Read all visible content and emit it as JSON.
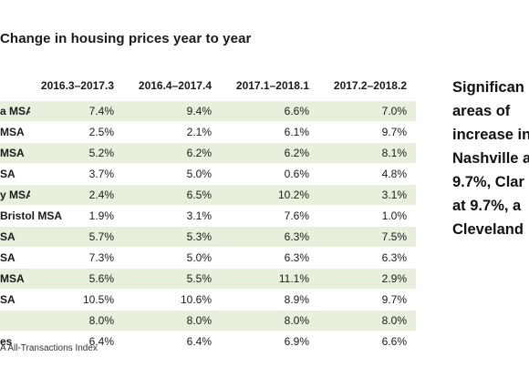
{
  "title": "Change in housing prices year to year",
  "table": {
    "columns": [
      "2016.3–2017.3",
      "2016.4–2017.4",
      "2017.1–2018.1",
      "2017.2–2018.2"
    ],
    "rows": [
      {
        "label": "a MSA",
        "values": [
          "7.4%",
          "9.4%",
          "6.6%",
          "7.0%"
        ]
      },
      {
        "label": "MSA",
        "values": [
          "2.5%",
          "2.1%",
          "6.1%",
          "9.7%"
        ]
      },
      {
        "label": "MSA",
        "values": [
          "5.2%",
          "6.2%",
          "6.2%",
          "8.1%"
        ]
      },
      {
        "label": "SA",
        "values": [
          "3.7%",
          "5.0%",
          "0.6%",
          "4.8%"
        ]
      },
      {
        "label": "y MSA",
        "values": [
          "2.4%",
          "6.5%",
          "10.2%",
          "3.1%"
        ]
      },
      {
        "label": "Bristol MSA",
        "values": [
          "1.9%",
          "3.1%",
          "7.6%",
          "1.0%"
        ]
      },
      {
        "label": "SA",
        "values": [
          "5.7%",
          "5.3%",
          "6.3%",
          "7.5%"
        ]
      },
      {
        "label": "SA",
        "values": [
          "7.3%",
          "5.0%",
          "6.3%",
          "6.3%"
        ]
      },
      {
        "label": "MSA",
        "values": [
          "5.6%",
          "5.5%",
          "11.1%",
          "2.9%"
        ]
      },
      {
        "label": "SA",
        "values": [
          "10.5%",
          "10.6%",
          "8.9%",
          "9.7%"
        ]
      },
      {
        "label": "",
        "values": [
          "8.0%",
          "8.0%",
          "8.0%",
          "8.0%"
        ]
      },
      {
        "label": "es",
        "values": [
          "6.4%",
          "6.4%",
          "6.9%",
          "6.6%"
        ]
      }
    ],
    "band_color": "#e7f0dd"
  },
  "source": "A All-Transactions Index",
  "sidebar": {
    "lines": [
      "Significan",
      "areas of",
      "increase in",
      "Nashville a",
      "9.7%, Clar",
      "at 9.7%, a",
      "Cleveland"
    ]
  }
}
